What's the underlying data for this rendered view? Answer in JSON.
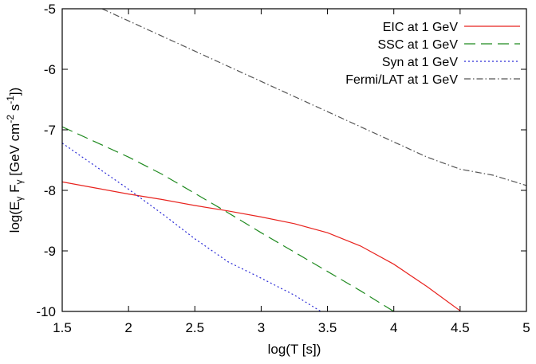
{
  "chart_data": {
    "type": "line",
    "title": "",
    "xlabel": "log(T [s])",
    "ylabel": {
      "text": "log(E",
      "sub1": "γ",
      "mid": " F",
      "sub2": "γ",
      "tail1": " [GeV cm",
      "sup1": "-2",
      "tail2": " s",
      "sup2": "-1",
      "tail3": "])"
    },
    "xlim": [
      1.5,
      5
    ],
    "ylim": [
      -10,
      -5
    ],
    "xticks": [
      1.5,
      2,
      2.5,
      3,
      3.5,
      4,
      4.5,
      5
    ],
    "xtick_labels": [
      "1.5",
      "2",
      "2.5",
      "3",
      "3.5",
      "4",
      "4.5",
      "5"
    ],
    "yticks": [
      -10,
      -9,
      -8,
      -7,
      -6,
      -5
    ],
    "ytick_labels": [
      "-10",
      "-9",
      "-8",
      "-7",
      "-6",
      "-5"
    ],
    "grid": false,
    "legend_position": "top-right",
    "series": [
      {
        "name": "EIC at 1 GeV",
        "color": "#e8231e",
        "dash": "solid",
        "x": [
          1.5,
          1.75,
          2.0,
          2.25,
          2.5,
          2.75,
          3.0,
          3.25,
          3.5,
          3.75,
          4.0,
          4.25,
          4.5
        ],
        "y": [
          -7.86,
          -7.96,
          -8.06,
          -8.15,
          -8.25,
          -8.34,
          -8.44,
          -8.55,
          -8.7,
          -8.92,
          -9.22,
          -9.59,
          -9.99
        ]
      },
      {
        "name": "SSC at 1 GeV",
        "color": "#1f8a1f",
        "dash": "long",
        "x": [
          1.5,
          1.75,
          2.0,
          2.25,
          2.5,
          2.75,
          3.0,
          3.25,
          3.5,
          3.75,
          4.0
        ],
        "y": [
          -6.95,
          -7.2,
          -7.45,
          -7.73,
          -8.05,
          -8.37,
          -8.7,
          -9.02,
          -9.34,
          -9.66,
          -10.0
        ]
      },
      {
        "name": "Syn at 1 GeV",
        "color": "#2b2bd6",
        "dash": "dot",
        "x": [
          1.5,
          1.75,
          2.0,
          2.25,
          2.5,
          2.75,
          3.0,
          3.25,
          3.45
        ],
        "y": [
          -7.22,
          -7.6,
          -7.98,
          -8.38,
          -8.8,
          -9.18,
          -9.45,
          -9.73,
          -10.0
        ]
      },
      {
        "name": "Fermi/LAT at 1 GeV",
        "color": "#555555",
        "dash": "dashdot",
        "x": [
          1.8,
          2.0,
          2.5,
          3.0,
          3.5,
          4.0,
          4.25,
          4.5,
          4.75,
          5.0
        ],
        "y": [
          -5.0,
          -5.2,
          -5.7,
          -6.2,
          -6.7,
          -7.2,
          -7.45,
          -7.65,
          -7.75,
          -7.92
        ]
      }
    ]
  }
}
